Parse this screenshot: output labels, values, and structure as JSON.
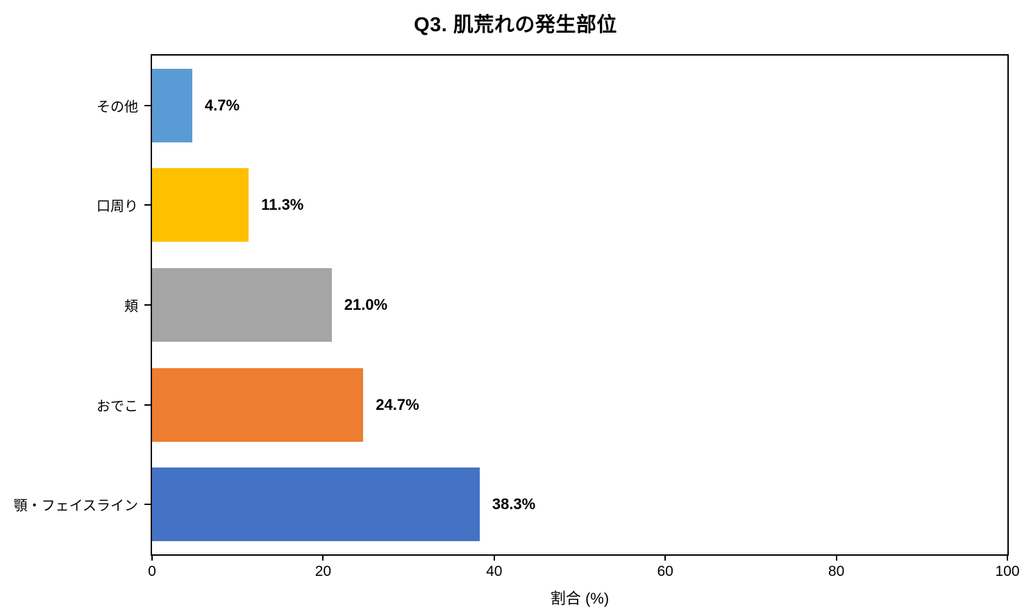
{
  "title": "Q3. 肌荒れの発生部位",
  "chart_data": {
    "type": "bar",
    "orientation": "horizontal",
    "title": "Q3. 肌荒れの発生部位",
    "categories": [
      "その他",
      "口周り",
      "頬",
      "おでこ",
      "顎・フェイスライン"
    ],
    "values": [
      4.7,
      11.3,
      21.0,
      24.7,
      38.3
    ],
    "value_labels": [
      "4.7%",
      "11.3%",
      "21.0%",
      "24.7%",
      "38.3%"
    ],
    "bar_colors": [
      "#5B9BD5",
      "#FFC000",
      "#A5A5A5",
      "#ED7D31",
      "#4472C4"
    ],
    "xlabel": "割合 (%)",
    "ylabel": "",
    "xlim": [
      0,
      100
    ],
    "x_ticks": [
      0,
      20,
      40,
      60,
      80,
      100
    ],
    "x_tick_labels": [
      "0",
      "20",
      "40",
      "60",
      "80",
      "100"
    ],
    "grid": false,
    "legend": false,
    "plot_border_color": "#000000",
    "background_color": "#FFFFFF",
    "text_color": "#000000"
  }
}
